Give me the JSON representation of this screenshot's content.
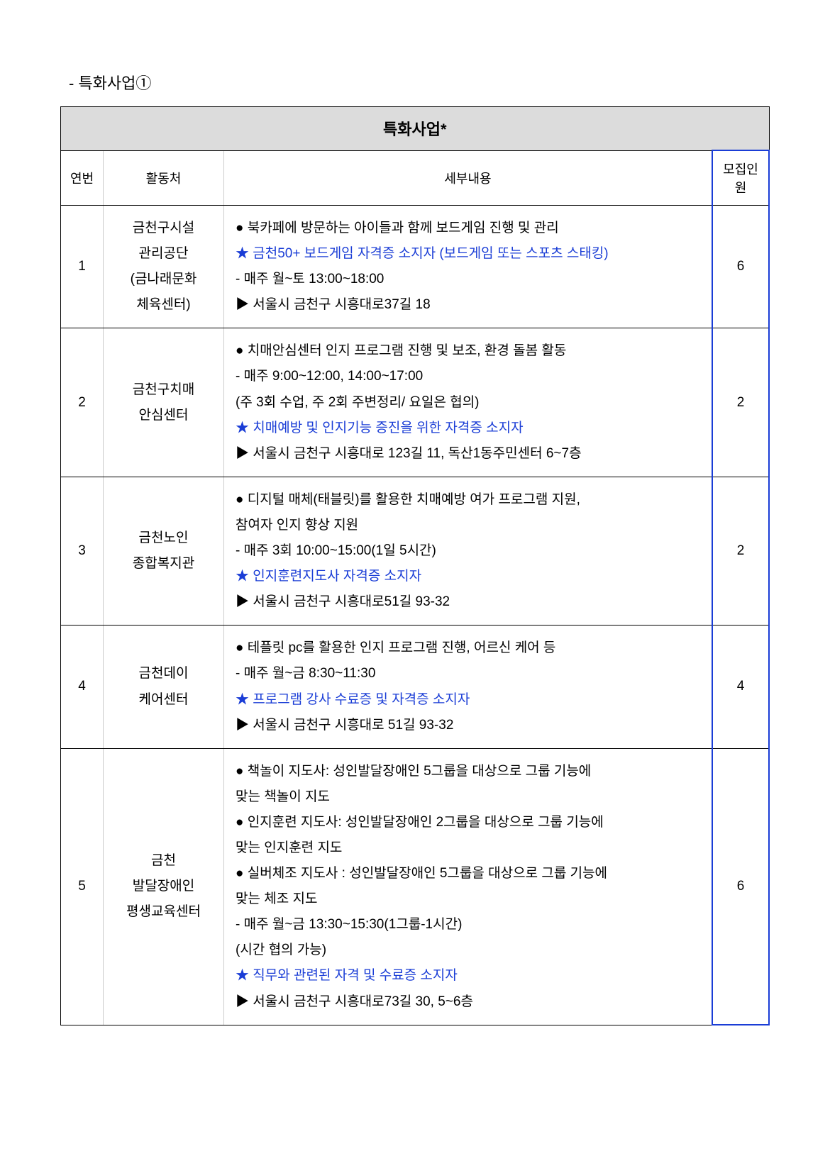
{
  "section_title": "- 특화사업①",
  "table": {
    "title": "특화사업*",
    "columns": {
      "num": "연번",
      "org": "활동처",
      "detail": "세부내용",
      "count": "모집인원"
    },
    "column_widths": {
      "num": 60,
      "org": 170,
      "count": 80
    },
    "highlight_color": "#1a3dd6",
    "header_bg": "#dcdcdc",
    "border_color": "#000000",
    "light_border_color": "#cccccc",
    "rows": [
      {
        "num": "1",
        "org_lines": [
          "금천구시설",
          "관리공단",
          "(금나래문화",
          "체육센터)"
        ],
        "details": [
          {
            "type": "bullet",
            "text": "북카페에 방문하는 아이들과 함께 보드게임 진행 및 관리"
          },
          {
            "type": "star",
            "text": "금천50+ 보드게임 자격증 소지자 (보드게임 또는 스포츠 스태킹)"
          },
          {
            "type": "dash",
            "text": "매주 월~토 13:00~18:00"
          },
          {
            "type": "arrow",
            "text": "서울시 금천구 시흥대로37길 18"
          }
        ],
        "count": "6"
      },
      {
        "num": "2",
        "org_lines": [
          "금천구치매",
          "안심센터"
        ],
        "details": [
          {
            "type": "bullet",
            "text": "치매안심센터 인지 프로그램 진행 및 보조, 환경 돌봄 활동"
          },
          {
            "type": "dash",
            "text": "매주 9:00~12:00, 14:00~17:00"
          },
          {
            "type": "plain",
            "text": "  (주 3회 수업, 주 2회 주변정리/ 요일은 협의)"
          },
          {
            "type": "star",
            "text": "치매예방 및 인지기능 증진을 위한 자격증 소지자"
          },
          {
            "type": "arrow",
            "text": "서울시 금천구 시흥대로 123길 11, 독산1동주민센터 6~7층"
          }
        ],
        "count": "2"
      },
      {
        "num": "3",
        "org_lines": [
          "금천노인",
          "종합복지관"
        ],
        "details": [
          {
            "type": "bullet",
            "text": "디지털 매체(태블릿)를 활용한 치매예방 여가 프로그램 지원,"
          },
          {
            "type": "plain",
            "text": "   참여자 인지 향상 지원"
          },
          {
            "type": "dash",
            "text": "매주 3회 10:00~15:00(1일 5시간)"
          },
          {
            "type": "star",
            "text": "인지훈련지도사 자격증 소지자"
          },
          {
            "type": "arrow",
            "text": "서울시 금천구 시흥대로51길 93-32"
          }
        ],
        "count": "2"
      },
      {
        "num": "4",
        "org_lines": [
          "금천데이",
          "케어센터"
        ],
        "details": [
          {
            "type": "bullet",
            "text": "테플릿 pc를 활용한 인지 프로그램 진행, 어르신 케어 등"
          },
          {
            "type": "dash",
            "text": "매주 월~금 8:30~11:30"
          },
          {
            "type": "star",
            "text": "프로그램 강사 수료증 및 자격증 소지자"
          },
          {
            "type": "arrow",
            "text": "서울시 금천구 시흥대로 51길 93-32"
          }
        ],
        "count": "4"
      },
      {
        "num": "5",
        "org_lines": [
          "금천",
          "발달장애인",
          "평생교육센터"
        ],
        "details": [
          {
            "type": "bullet",
            "text": "책놀이 지도사: 성인발달장애인 5그룹을 대상으로 그룹 기능에"
          },
          {
            "type": "plain",
            "text": "   맞는 책놀이 지도"
          },
          {
            "type": "bullet",
            "text": "인지훈련 지도사: 성인발달장애인 2그룹을 대상으로 그룹 기능에"
          },
          {
            "type": "plain",
            "text": "   맞는 인지훈련 지도"
          },
          {
            "type": "bullet",
            "text": "실버체조 지도사 : 성인발달장애인 5그룹을 대상으로 그룹 기능에"
          },
          {
            "type": "plain",
            "text": "   맞는 체조 지도"
          },
          {
            "type": "dash",
            "text": "매주 월~금 13:30~15:30(1그룹-1시간)"
          },
          {
            "type": "plain",
            "text": "  (시간 협의 가능)"
          },
          {
            "type": "star",
            "text": "직무와 관련된 자격 및 수료증 소지자"
          },
          {
            "type": "arrow",
            "text": "서울시 금천구 시흥대로73길 30, 5~6층"
          }
        ],
        "count": "6"
      }
    ]
  }
}
